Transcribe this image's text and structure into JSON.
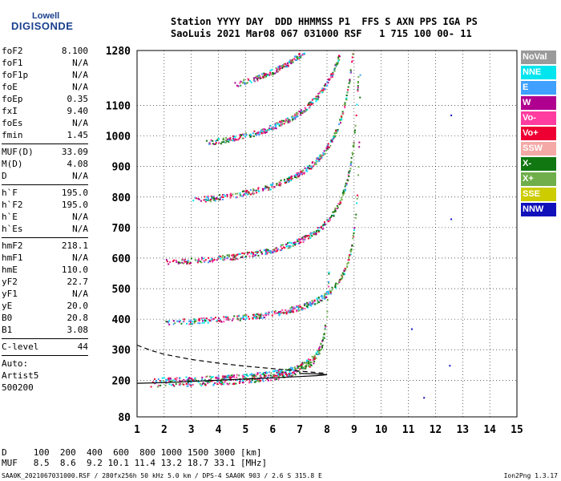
{
  "logo": {
    "line1": "Lowell",
    "line2": "DIGISONDE"
  },
  "header": {
    "line1": "Station YYYY DAY  DDD HHMMSS P1  FFS S AXN PPS IGA PS",
    "line2": "SaoLuis 2021 Mar08 067 031000 RSF   1 715 100 00- 11"
  },
  "params": [
    {
      "label": "foF2",
      "value": "8.100"
    },
    {
      "label": "foF1",
      "value": "N/A"
    },
    {
      "label": "foF1p",
      "value": "N/A"
    },
    {
      "label": "foE",
      "value": "N/A"
    },
    {
      "label": "foEp",
      "value": "0.35"
    },
    {
      "label": "fxI",
      "value": "9.40"
    },
    {
      "label": "foEs",
      "value": "N/A"
    },
    {
      "label": "fmin",
      "value": "1.45"
    },
    {
      "sep": true
    },
    {
      "label": "MUF(D)",
      "value": "33.09"
    },
    {
      "label": "M(D)",
      "value": "4.08"
    },
    {
      "label": "D",
      "value": "N/A"
    },
    {
      "sep": true
    },
    {
      "label": "h`F",
      "value": "195.0"
    },
    {
      "label": "h`F2",
      "value": "195.0"
    },
    {
      "label": "h`E",
      "value": "N/A"
    },
    {
      "label": "h`Es",
      "value": "N/A"
    },
    {
      "sep": true
    },
    {
      "label": "hmF2",
      "value": "218.1"
    },
    {
      "label": "hmF1",
      "value": "N/A"
    },
    {
      "label": "hmE",
      "value": "110.0"
    },
    {
      "label": "yF2",
      "value": "22.7"
    },
    {
      "label": "yF1",
      "value": "N/A"
    },
    {
      "label": "yE",
      "value": "20.0"
    },
    {
      "label": "B0",
      "value": "20.8"
    },
    {
      "label": "B1",
      "value": "3.08"
    },
    {
      "sep": true
    },
    {
      "label": "C-level",
      "value": "44"
    },
    {
      "sep": true
    },
    {
      "text": "Auto:"
    },
    {
      "text": "Artist5"
    },
    {
      "text": "500200"
    }
  ],
  "legend": [
    {
      "label": "NoVal",
      "color": "#9a9a9a"
    },
    {
      "label": "NNE",
      "color": "#00e5ee"
    },
    {
      "label": "E",
      "color": "#3fa0ff"
    },
    {
      "label": "W",
      "color": "#b0008f"
    },
    {
      "label": "Vo-",
      "color": "#ff3c9f"
    },
    {
      "label": "Vo+",
      "color": "#ee0033"
    },
    {
      "label": "SSW",
      "color": "#f4a9a6"
    },
    {
      "label": "X-",
      "color": "#117711"
    },
    {
      "label": "X+",
      "color": "#6fae4a"
    },
    {
      "label": "SSE",
      "color": "#cccc00"
    },
    {
      "label": "NNW",
      "color": "#1111bb"
    }
  ],
  "muf_table": {
    "row1": "D     100  200  400  600  800 1000 1500 3000 [km]",
    "row2": "MUF   8.5  8.6  9.2 10.1 11.4 13.2 18.7 33.1 [MHz]"
  },
  "footer": "SAA0K_2021067031000.RSF / 280fx256h 50 kHz 5.0 km / DPS-4 SAA0K 903 / 2.6 S 315.8 E",
  "version": "Ion2Png 1.3.17",
  "chart_data": {
    "type": "scatter",
    "xlim": [
      1,
      15
    ],
    "ylim": [
      80,
      1280
    ],
    "x_ticks": [
      "1",
      "2",
      "3",
      "4",
      "5",
      "6",
      "7",
      "8",
      "9",
      "10",
      "11",
      "12",
      "13",
      "14",
      "15"
    ],
    "y_ticks": [
      {
        "value": 80,
        "label": "80"
      },
      {
        "value": 200,
        "label": "200"
      },
      {
        "value": 300,
        "label": "300"
      },
      {
        "value": 400,
        "label": "400"
      },
      {
        "value": 500,
        "label": "500"
      },
      {
        "value": 600,
        "label": "600"
      },
      {
        "value": 700,
        "label": "700"
      },
      {
        "value": 800,
        "label": "800"
      },
      {
        "value": 900,
        "label": "900"
      },
      {
        "value": 1000,
        "label": "1000"
      },
      {
        "value": 1100,
        "label": "1100"
      },
      {
        "value": 1280,
        "label": "1280"
      }
    ],
    "traces": [
      {
        "fmin": 1.45,
        "fc": 8.1,
        "h": 195,
        "k": 8
      },
      {
        "fmin": 1.9,
        "fc": 9.25,
        "h": 390,
        "k": 16
      },
      {
        "fmin": 2.0,
        "fc": 9.3,
        "h": 585,
        "k": 24
      },
      {
        "fmin": 3.0,
        "fc": 9.3,
        "h": 780,
        "k": 32
      },
      {
        "fmin": 3.5,
        "fc": 9.4,
        "h": 960,
        "k": 40
      },
      {
        "fmin": 4.5,
        "fc": 9.5,
        "h": 1130,
        "k": 48
      }
    ],
    "profile_solid": [
      [
        1.0,
        190
      ],
      [
        2.0,
        192
      ],
      [
        3.0,
        196
      ],
      [
        4.0,
        200
      ],
      [
        5.0,
        204
      ],
      [
        6.0,
        208
      ],
      [
        7.0,
        212
      ],
      [
        7.6,
        215
      ],
      [
        8.0,
        218.1
      ],
      [
        7.6,
        221
      ],
      [
        7.0,
        222
      ]
    ],
    "profile_dashed": [
      [
        1.0,
        315
      ],
      [
        1.5,
        298
      ],
      [
        2.0,
        285
      ],
      [
        3.0,
        268
      ],
      [
        4.0,
        256
      ],
      [
        5.0,
        246
      ],
      [
        6.0,
        238
      ],
      [
        7.0,
        230
      ],
      [
        8.0,
        222
      ]
    ],
    "scattered_points": [
      [
        11.1,
        370
      ],
      [
        12.5,
        250
      ],
      [
        12.55,
        730
      ],
      [
        12.55,
        1070
      ],
      [
        11.55,
        145
      ]
    ],
    "grid": true
  }
}
